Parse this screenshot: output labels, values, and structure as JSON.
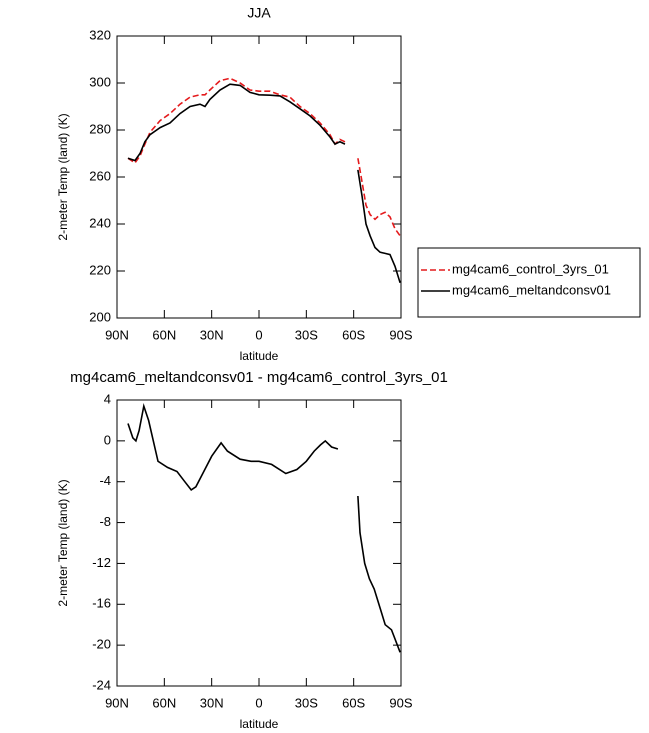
{
  "chart_data": [
    {
      "type": "line",
      "title": "JJA",
      "xlabel": "latitude",
      "ylabel": "2-meter Temp (land) (K)",
      "x": [
        83,
        78.6,
        75.4,
        72.3,
        69.1,
        62.7,
        56.4,
        50.1,
        43.7,
        37.4,
        34.2,
        31.1,
        24.7,
        18.4,
        12,
        5.7,
        0,
        -7,
        -13.3,
        -19.6,
        -26,
        -32.3,
        -38.7,
        -45,
        -48.2,
        -51.3,
        -54.5,
        -58,
        -62.7,
        -65.3,
        -67.8,
        -70.4,
        -73.5,
        -76.7,
        -79.9,
        -83,
        -86.2,
        -89.4
      ],
      "series": [
        {
          "name": "mg4cam6_control_3yrs_01",
          "color": "#e41a1c",
          "dashed": true,
          "values": [
            268,
            266,
            269,
            274,
            279,
            284,
            287,
            291,
            294,
            295,
            295,
            297,
            301,
            302,
            300,
            297,
            296.5,
            296.5,
            295,
            294,
            290,
            287,
            283,
            278,
            274,
            276,
            275,
            null,
            268,
            258,
            248,
            244,
            242,
            244,
            245,
            243,
            238,
            235
          ]
        },
        {
          "name": "mg4cam6_meltandconsv01",
          "color": "#000000",
          "dashed": false,
          "values": [
            268,
            267,
            270,
            275,
            278,
            281,
            283,
            287,
            290,
            291,
            290,
            293,
            297,
            299.5,
            299,
            296,
            295,
            294.8,
            294.5,
            292,
            289,
            286,
            282,
            277,
            274,
            275,
            274,
            null,
            263,
            252,
            240,
            235,
            230,
            228,
            227.5,
            227,
            222,
            215
          ]
        }
      ],
      "xlim": [
        90,
        -90
      ],
      "xticks": [
        {
          "value": 90,
          "label": "90N"
        },
        {
          "value": 60,
          "label": "60N"
        },
        {
          "value": 30,
          "label": "30N"
        },
        0,
        {
          "value": -30,
          "label": "30S"
        },
        {
          "value": -60,
          "label": "60S"
        },
        {
          "value": -90,
          "label": "90S"
        }
      ],
      "ylim": [
        200,
        320
      ],
      "yticks": [
        200,
        220,
        240,
        260,
        280,
        300,
        320
      ]
    },
    {
      "type": "line",
      "title": "mg4cam6_meltandconsv01 - mg4cam6_control_3yrs_01",
      "xlabel": "latitude",
      "ylabel": "2-meter Temp (land) (K)",
      "x": [
        83,
        80,
        78,
        76,
        73,
        70,
        64,
        58,
        52,
        47,
        43,
        40,
        35,
        30,
        24,
        20,
        12,
        5,
        0,
        -8,
        -17,
        -24,
        -30,
        -35,
        -39,
        -42,
        -46,
        -50,
        -56,
        -62.7,
        -64,
        -67,
        -70,
        -73,
        -77,
        -80,
        -84,
        -89.4
      ],
      "values": [
        1.7,
        0.3,
        0,
        1,
        3.4,
        2,
        -2,
        -2.6,
        -3,
        -4,
        -4.8,
        -4.5,
        -3,
        -1.5,
        -0.2,
        -1,
        -1.8,
        -2,
        -2,
        -2.3,
        -3.2,
        -2.8,
        -2,
        -1,
        -0.4,
        0,
        -0.6,
        -0.8,
        null,
        -5.4,
        -9,
        -12,
        -13.5,
        -14.5,
        -16.5,
        -18,
        -18.5,
        -20.7
      ],
      "color": "#000000",
      "xlim": [
        90,
        -90
      ],
      "xticks": [
        {
          "value": 90,
          "label": "90N"
        },
        {
          "value": 60,
          "label": "60N"
        },
        {
          "value": 30,
          "label": "30N"
        },
        0,
        {
          "value": -30,
          "label": "30S"
        },
        {
          "value": -60,
          "label": "60S"
        },
        {
          "value": -90,
          "label": "90S"
        }
      ],
      "ylim": [
        -24,
        4
      ],
      "yticks": [
        -24,
        -20,
        -16,
        -12,
        -8,
        -4,
        0,
        4
      ]
    }
  ]
}
